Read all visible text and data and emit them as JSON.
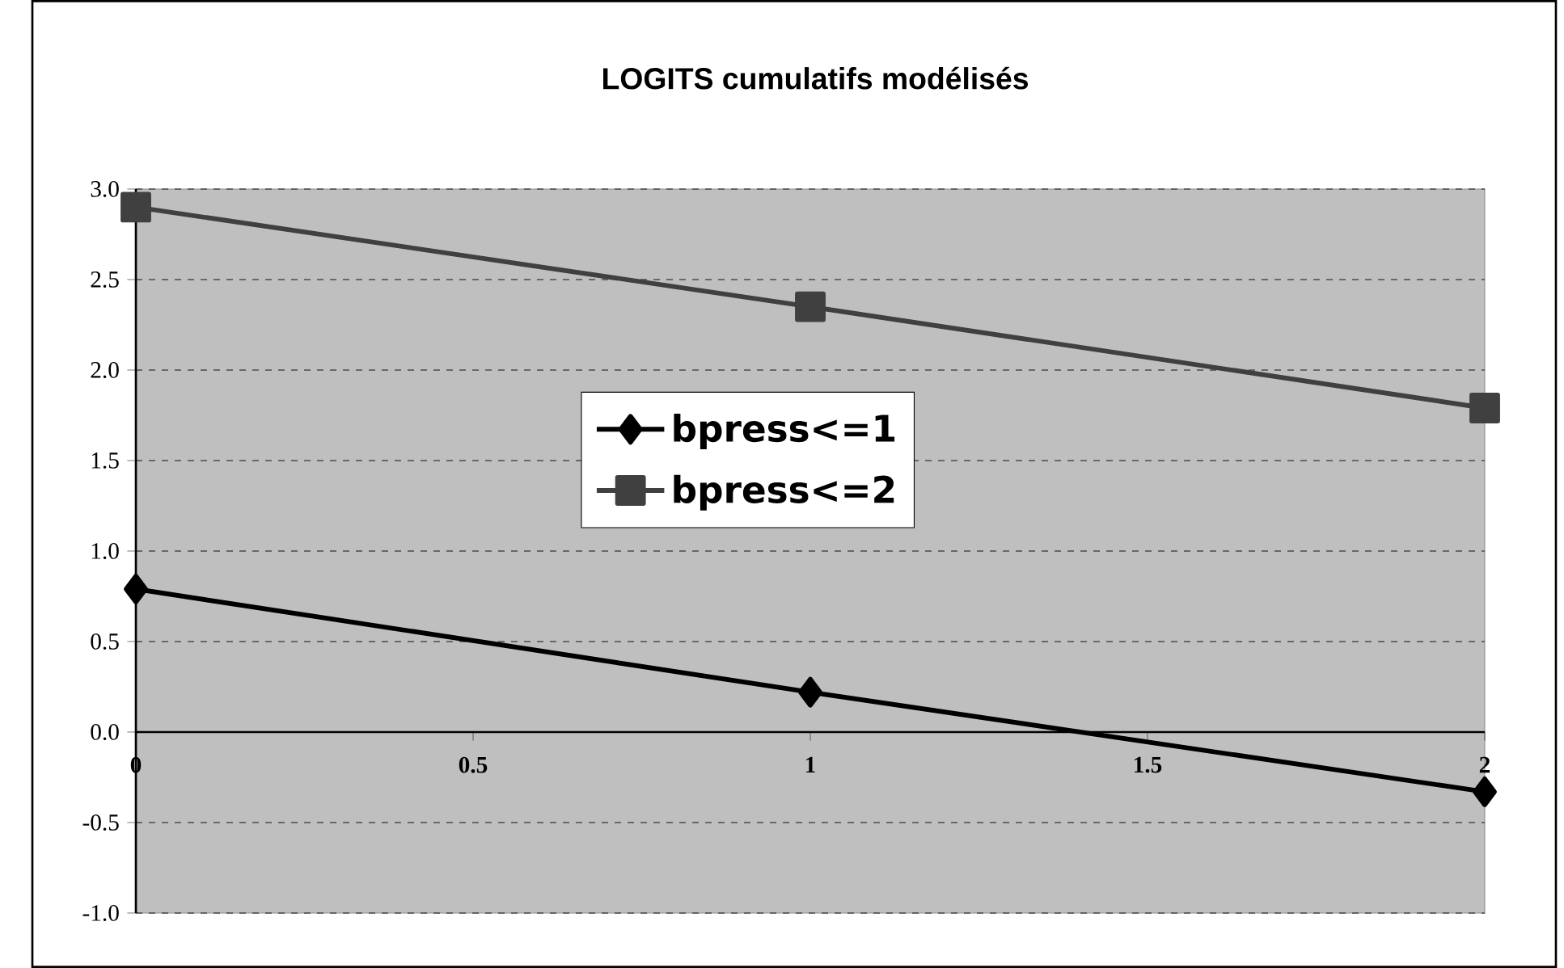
{
  "chart_data": {
    "type": "line",
    "title": "LOGITS cumulatifs modélisés",
    "x": [
      0,
      1,
      2
    ],
    "series": [
      {
        "name": "bpress<=1",
        "color": "#000000",
        "marker": "diamond",
        "values": [
          0.79,
          0.22,
          -0.33
        ]
      },
      {
        "name": "bpress<=2",
        "color": "#404040",
        "marker": "square",
        "values": [
          2.9,
          2.35,
          1.79
        ]
      }
    ],
    "xlim": [
      0,
      2
    ],
    "xticks": [
      0,
      0.5,
      1,
      1.5,
      2
    ],
    "ylim": [
      -1,
      3
    ],
    "yticks": [
      {
        "value": -1,
        "label": "-1.0"
      },
      {
        "value": -0.5,
        "label": "-0.5"
      },
      {
        "value": 0,
        "label": "0.0"
      },
      {
        "value": 0.5,
        "label": "0.5"
      },
      {
        "value": 1,
        "label": "1.0"
      },
      {
        "value": 1.5,
        "label": "1.5"
      },
      {
        "value": 2,
        "label": "2.0"
      },
      {
        "value": 2.5,
        "label": "2.5"
      },
      {
        "value": 3,
        "label": "3.0"
      }
    ],
    "grid": "y",
    "legend": "center",
    "line_style": "solid"
  }
}
